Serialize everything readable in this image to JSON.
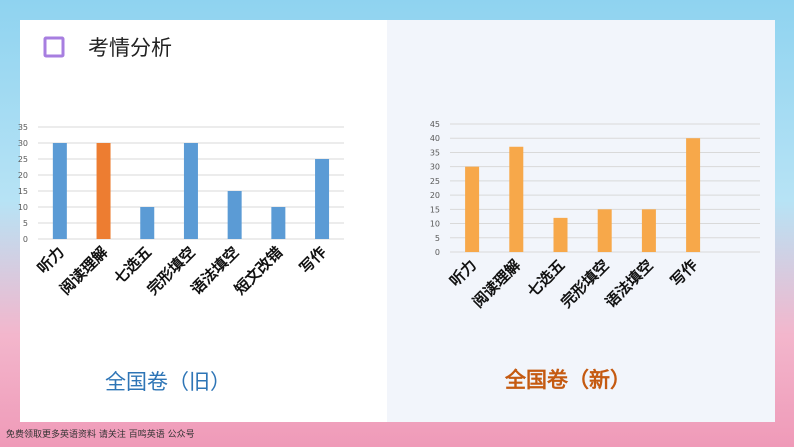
{
  "slide_title": "考情分析",
  "footer": "免费领取更多英语资料 请关注 百鸣英语 公众号",
  "chart_data": [
    {
      "type": "bar",
      "title": "全国卷（旧）",
      "title_color": "#2e75b6",
      "categories": [
        "听力",
        "阅读理解",
        "七选五",
        "完形填空",
        "语法填空",
        "短文改错",
        "写作"
      ],
      "values": [
        30,
        30,
        10,
        30,
        15,
        10,
        25
      ],
      "colors": [
        "#5b9bd5",
        "#ed7d31",
        "#5b9bd5",
        "#5b9bd5",
        "#5b9bd5",
        "#5b9bd5",
        "#5b9bd5"
      ],
      "ylim": [
        0,
        35
      ],
      "yticks": [
        0,
        5,
        10,
        15,
        20,
        25,
        30,
        35
      ],
      "grid": true
    },
    {
      "type": "bar",
      "title": "全国卷（新）",
      "title_color": "#c55a11",
      "categories": [
        "听力",
        "阅读理解",
        "七选五",
        "完形填空",
        "语法填空",
        "写作"
      ],
      "values": [
        30,
        37,
        12,
        15,
        15,
        40
      ],
      "colors": [
        "#f7a84a",
        "#f7a84a",
        "#f7a84a",
        "#f7a84a",
        "#f7a84a",
        "#f7a84a"
      ],
      "ylim": [
        0,
        45
      ],
      "yticks": [
        0,
        5,
        10,
        15,
        20,
        25,
        30,
        35,
        40,
        45
      ],
      "grid": true
    }
  ]
}
